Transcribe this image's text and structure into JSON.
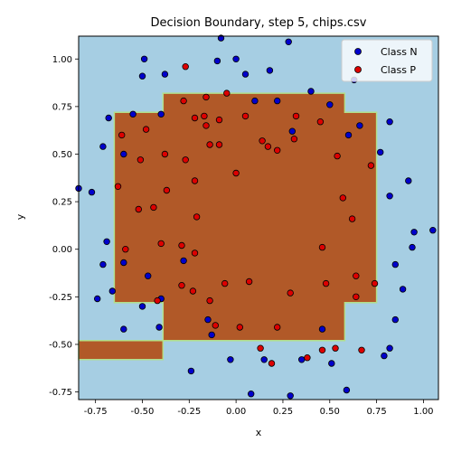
{
  "chart_data": {
    "type": "scatter",
    "title": "Decision Boundary, step 5, chips.csv",
    "xlabel": "x",
    "ylabel": "y",
    "xlim": [
      -0.84,
      1.08
    ],
    "ylim": [
      -0.79,
      1.12
    ],
    "xticks": [
      -0.75,
      -0.5,
      -0.25,
      0.0,
      0.25,
      0.5,
      0.75,
      1.0
    ],
    "yticks": [
      -0.75,
      -0.5,
      -0.25,
      0.0,
      0.25,
      0.5,
      0.75,
      1.0
    ],
    "background_color": "#a6cee3",
    "region_color": "#b15928",
    "region_edge_color": "#b2df8a",
    "region_polygon": [
      [
        -0.65,
        0.72
      ],
      [
        -0.39,
        0.72
      ],
      [
        -0.39,
        0.82
      ],
      [
        0.58,
        0.82
      ],
      [
        0.58,
        0.72
      ],
      [
        0.75,
        0.72
      ],
      [
        0.75,
        -0.28
      ],
      [
        0.58,
        -0.28
      ],
      [
        0.58,
        -0.48
      ],
      [
        -0.39,
        -0.48
      ],
      [
        -0.39,
        -0.58
      ],
      [
        -0.84,
        -0.58
      ],
      [
        -0.84,
        -0.48
      ],
      [
        -0.39,
        -0.48
      ],
      [
        -0.39,
        -0.28
      ],
      [
        -0.65,
        -0.28
      ]
    ],
    "legend": {
      "placement": "top-right",
      "entries": [
        {
          "label": "Class N",
          "color": "#0000cc"
        },
        {
          "label": "Class P",
          "color": "#dd0000"
        }
      ]
    },
    "series": [
      {
        "name": "Class N",
        "color": "#0000cc",
        "points": [
          [
            -0.08,
            1.11
          ],
          [
            0.28,
            1.09
          ],
          [
            -0.49,
            1.0
          ],
          [
            -0.1,
            0.99
          ],
          [
            0.0,
            1.0
          ],
          [
            0.05,
            0.92
          ],
          [
            0.18,
            0.94
          ],
          [
            -0.38,
            0.92
          ],
          [
            -0.5,
            0.91
          ],
          [
            0.63,
            0.89
          ],
          [
            0.4,
            0.83
          ],
          [
            0.1,
            0.78
          ],
          [
            0.22,
            0.78
          ],
          [
            0.5,
            0.76
          ],
          [
            -0.68,
            0.69
          ],
          [
            -0.55,
            0.71
          ],
          [
            -0.4,
            0.71
          ],
          [
            0.82,
            0.67
          ],
          [
            0.66,
            0.65
          ],
          [
            0.6,
            0.6
          ],
          [
            0.3,
            0.62
          ],
          [
            -0.6,
            0.5
          ],
          [
            -0.71,
            0.54
          ],
          [
            0.77,
            0.51
          ],
          [
            0.92,
            0.36
          ],
          [
            -0.77,
            0.3
          ],
          [
            -0.84,
            0.32
          ],
          [
            0.82,
            0.28
          ],
          [
            1.05,
            0.1
          ],
          [
            0.95,
            0.09
          ],
          [
            -0.69,
            0.04
          ],
          [
            0.94,
            0.01
          ],
          [
            -0.6,
            -0.07
          ],
          [
            -0.71,
            -0.08
          ],
          [
            -0.28,
            -0.06
          ],
          [
            0.85,
            -0.08
          ],
          [
            -0.47,
            -0.14
          ],
          [
            0.89,
            -0.21
          ],
          [
            -0.66,
            -0.22
          ],
          [
            -0.74,
            -0.26
          ],
          [
            -0.4,
            -0.26
          ],
          [
            -0.5,
            -0.3
          ],
          [
            0.85,
            -0.37
          ],
          [
            -0.15,
            -0.37
          ],
          [
            -0.6,
            -0.42
          ],
          [
            -0.41,
            -0.41
          ],
          [
            0.46,
            -0.42
          ],
          [
            -0.13,
            -0.45
          ],
          [
            0.82,
            -0.52
          ],
          [
            0.79,
            -0.56
          ],
          [
            -0.03,
            -0.58
          ],
          [
            0.15,
            -0.58
          ],
          [
            0.35,
            -0.58
          ],
          [
            0.51,
            -0.6
          ],
          [
            -0.24,
            -0.64
          ],
          [
            0.08,
            -0.76
          ],
          [
            0.29,
            -0.77
          ],
          [
            0.59,
            -0.74
          ]
        ]
      },
      {
        "name": "Class P",
        "color": "#dd0000",
        "points": [
          [
            -0.27,
            0.96
          ],
          [
            -0.28,
            0.78
          ],
          [
            -0.16,
            0.8
          ],
          [
            -0.05,
            0.82
          ],
          [
            -0.22,
            0.69
          ],
          [
            -0.17,
            0.7
          ],
          [
            -0.09,
            0.68
          ],
          [
            0.05,
            0.7
          ],
          [
            0.32,
            0.7
          ],
          [
            0.45,
            0.67
          ],
          [
            -0.16,
            0.65
          ],
          [
            -0.61,
            0.6
          ],
          [
            -0.48,
            0.63
          ],
          [
            0.14,
            0.57
          ],
          [
            0.31,
            0.58
          ],
          [
            -0.14,
            0.55
          ],
          [
            -0.09,
            0.55
          ],
          [
            0.17,
            0.54
          ],
          [
            0.22,
            0.52
          ],
          [
            -0.38,
            0.5
          ],
          [
            -0.27,
            0.47
          ],
          [
            -0.51,
            0.47
          ],
          [
            0.54,
            0.49
          ],
          [
            0.72,
            0.44
          ],
          [
            0.0,
            0.4
          ],
          [
            -0.22,
            0.36
          ],
          [
            -0.37,
            0.31
          ],
          [
            -0.63,
            0.33
          ],
          [
            0.57,
            0.27
          ],
          [
            -0.44,
            0.22
          ],
          [
            -0.52,
            0.21
          ],
          [
            -0.21,
            0.17
          ],
          [
            0.62,
            0.16
          ],
          [
            -0.4,
            0.03
          ],
          [
            -0.29,
            0.02
          ],
          [
            0.46,
            0.01
          ],
          [
            -0.59,
            0.0
          ],
          [
            -0.22,
            -0.02
          ],
          [
            0.64,
            -0.14
          ],
          [
            0.07,
            -0.17
          ],
          [
            -0.29,
            -0.19
          ],
          [
            -0.06,
            -0.18
          ],
          [
            0.48,
            -0.18
          ],
          [
            0.74,
            -0.18
          ],
          [
            -0.23,
            -0.22
          ],
          [
            0.29,
            -0.23
          ],
          [
            0.64,
            -0.25
          ],
          [
            -0.42,
            -0.27
          ],
          [
            -0.14,
            -0.27
          ],
          [
            -0.11,
            -0.4
          ],
          [
            0.02,
            -0.41
          ],
          [
            0.22,
            -0.41
          ],
          [
            0.13,
            -0.52
          ],
          [
            0.53,
            -0.52
          ],
          [
            0.46,
            -0.53
          ],
          [
            0.67,
            -0.53
          ],
          [
            0.38,
            -0.57
          ],
          [
            0.19,
            -0.6
          ]
        ]
      }
    ]
  }
}
